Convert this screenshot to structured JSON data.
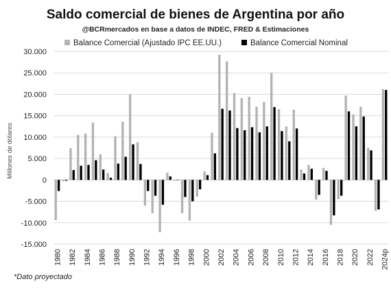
{
  "chart_data": {
    "type": "bar",
    "title": "Saldo comercial de bienes de Argentina por año",
    "subtitle": "@BCRmercados en base a datos de INDEC, FRED & Estimaciones",
    "ylabel": "Millones de dólares",
    "xlabel": "",
    "ylim": [
      -15000,
      30000
    ],
    "yticks": [
      30000,
      25000,
      20000,
      15000,
      10000,
      5000,
      0,
      -5000,
      -10000,
      -15000
    ],
    "ytick_labels": [
      "30.000",
      "25.000",
      "20.000",
      "15.000",
      "10.000",
      "5.000",
      "0",
      "-5.000",
      "-10.000",
      "-15.000"
    ],
    "grid": true,
    "legend_position": "top",
    "categories": [
      "1980",
      "1981",
      "1982",
      "1983",
      "1984",
      "1985",
      "1986",
      "1987",
      "1988",
      "1989",
      "1990",
      "1991",
      "1992",
      "1993",
      "1994",
      "1995",
      "1996",
      "1997",
      "1998",
      "1999",
      "2000",
      "2001",
      "2002",
      "2003",
      "2004",
      "2005",
      "2006",
      "2007",
      "2008",
      "2009",
      "2010",
      "2011",
      "2012",
      "2013",
      "2014",
      "2015",
      "2016",
      "2017",
      "2018",
      "2019",
      "2020",
      "2021",
      "2022",
      "2023",
      "2024p"
    ],
    "xtick_labels": [
      "1980",
      "1982",
      "1984",
      "1986",
      "1988",
      "1990",
      "1992",
      "1994",
      "1996",
      "1998",
      "2000",
      "2002",
      "2004",
      "2006",
      "2008",
      "2010",
      "2012",
      "2014",
      "2016",
      "2018",
      "2020",
      "2022",
      "2024p"
    ],
    "series": [
      {
        "name": "Balance Comercial (Ajustado IPC EE.UU.)",
        "color": "#b3b3b3",
        "values": [
          -9400,
          -300,
          7400,
          10500,
          10800,
          13400,
          6000,
          1600,
          10200,
          13600,
          20000,
          8800,
          -6000,
          -7800,
          -12200,
          1700,
          -200,
          -7800,
          -9500,
          -3900,
          2000,
          11000,
          29200,
          27700,
          20300,
          19100,
          19400,
          17100,
          18200,
          25000,
          16500,
          12500,
          16400,
          2400,
          3500,
          -4600,
          2800,
          -10500,
          -4500,
          19700,
          15300,
          17100,
          7500,
          -7200,
          21200
        ]
      },
      {
        "name": "Balance Comercial Nominal",
        "color": "#000000",
        "values": [
          -2600,
          -200,
          2300,
          3300,
          3500,
          4600,
          2400,
          500,
          3800,
          5400,
          8300,
          3700,
          -2600,
          -3700,
          -5800,
          800,
          -100,
          -4000,
          -5000,
          -2200,
          1100,
          6200,
          16600,
          16200,
          12100,
          11600,
          12300,
          11100,
          12500,
          17000,
          11400,
          9000,
          12000,
          1500,
          2600,
          -3500,
          2100,
          -8300,
          -3700,
          16000,
          12500,
          14800,
          6900,
          -6900,
          21000
        ]
      }
    ]
  },
  "footnote": "*Dato proyectado"
}
